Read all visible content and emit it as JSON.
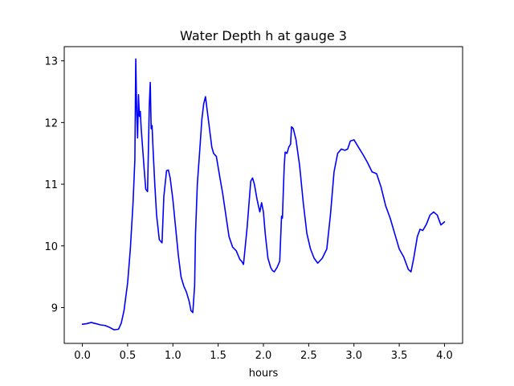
{
  "chart_data": {
    "type": "line",
    "title": "Water Depth h at gauge 3",
    "xlabel": "hours",
    "ylabel": "",
    "xlim": [
      -0.2,
      4.2
    ],
    "ylim": [
      8.42,
      13.23
    ],
    "xticks": [
      0.0,
      0.5,
      1.0,
      1.5,
      2.0,
      2.5,
      3.0,
      3.5,
      4.0
    ],
    "xtick_labels": [
      "0.0",
      "0.5",
      "1.0",
      "1.5",
      "2.0",
      "2.5",
      "3.0",
      "3.5",
      "4.0"
    ],
    "yticks": [
      9,
      10,
      11,
      12,
      13
    ],
    "ytick_labels": [
      "9",
      "10",
      "11",
      "12",
      "13"
    ],
    "grid": false,
    "legend": "none",
    "series": [
      {
        "color": "#0000ff",
        "x": [
          0.0,
          0.05,
          0.1,
          0.12,
          0.15,
          0.2,
          0.25,
          0.3,
          0.35,
          0.4,
          0.43,
          0.46,
          0.5,
          0.53,
          0.56,
          0.58,
          0.59,
          0.6,
          0.61,
          0.62,
          0.63,
          0.64,
          0.65,
          0.66,
          0.68,
          0.7,
          0.72,
          0.74,
          0.75,
          0.76,
          0.77,
          0.78,
          0.8,
          0.82,
          0.85,
          0.88,
          0.9,
          0.93,
          0.95,
          0.97,
          1.0,
          1.03,
          1.06,
          1.09,
          1.12,
          1.15,
          1.18,
          1.2,
          1.22,
          1.24,
          1.25,
          1.27,
          1.3,
          1.32,
          1.34,
          1.36,
          1.4,
          1.43,
          1.45,
          1.48,
          1.52,
          1.55,
          1.58,
          1.62,
          1.66,
          1.7,
          1.74,
          1.76,
          1.78,
          1.82,
          1.86,
          1.88,
          1.9,
          1.93,
          1.96,
          1.98,
          2.0,
          2.02,
          2.05,
          2.08,
          2.1,
          2.12,
          2.15,
          2.18,
          2.2,
          2.21,
          2.22,
          2.23,
          2.24,
          2.26,
          2.28,
          2.3,
          2.31,
          2.33,
          2.36,
          2.4,
          2.44,
          2.48,
          2.52,
          2.56,
          2.6,
          2.65,
          2.7,
          2.74,
          2.78,
          2.82,
          2.86,
          2.9,
          2.93,
          2.96,
          3.0,
          3.05,
          3.1,
          3.15,
          3.2,
          3.25,
          3.3,
          3.35,
          3.4,
          3.45,
          3.5,
          3.55,
          3.6,
          3.63,
          3.66,
          3.7,
          3.73,
          3.76,
          3.8,
          3.84,
          3.88,
          3.92,
          3.96,
          4.0
        ],
        "y": [
          8.73,
          8.74,
          8.76,
          8.75,
          8.74,
          8.72,
          8.71,
          8.68,
          8.64,
          8.65,
          8.75,
          8.95,
          9.4,
          9.95,
          10.7,
          11.4,
          13.03,
          12.2,
          11.75,
          12.45,
          12.1,
          12.18,
          11.9,
          11.7,
          11.3,
          10.92,
          10.88,
          12.3,
          12.65,
          11.9,
          11.95,
          11.6,
          11.0,
          10.5,
          10.1,
          10.05,
          10.8,
          11.22,
          11.23,
          11.1,
          10.75,
          10.3,
          9.85,
          9.5,
          9.35,
          9.25,
          9.1,
          8.95,
          8.92,
          9.35,
          10.2,
          11.0,
          11.62,
          12.05,
          12.3,
          12.42,
          11.95,
          11.6,
          11.5,
          11.45,
          11.1,
          10.85,
          10.55,
          10.15,
          9.98,
          9.92,
          9.78,
          9.75,
          9.7,
          10.3,
          11.05,
          11.1,
          11.0,
          10.75,
          10.55,
          10.7,
          10.55,
          10.2,
          9.8,
          9.65,
          9.6,
          9.58,
          9.65,
          9.75,
          10.48,
          10.45,
          10.9,
          11.3,
          11.52,
          11.5,
          11.6,
          11.65,
          11.93,
          11.9,
          11.72,
          11.3,
          10.7,
          10.2,
          9.95,
          9.8,
          9.72,
          9.8,
          9.95,
          10.5,
          11.2,
          11.5,
          11.57,
          11.55,
          11.57,
          11.7,
          11.72,
          11.6,
          11.48,
          11.35,
          11.2,
          11.17,
          10.95,
          10.65,
          10.45,
          10.2,
          9.95,
          9.82,
          9.62,
          9.58,
          9.8,
          10.15,
          10.27,
          10.25,
          10.35,
          10.5,
          10.55,
          10.5,
          10.34,
          10.39
        ]
      }
    ]
  }
}
